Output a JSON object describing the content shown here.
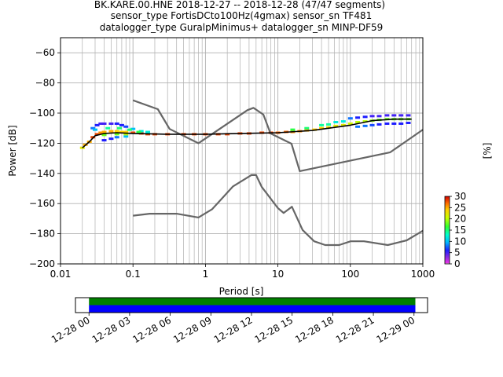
{
  "title_lines": [
    "BK.KARE.00.HNE   2018-12-27 -- 2018-12-28  (47/47 segments)",
    "sensor_type FortisDCto100Hz(4gmax) sensor_sn TF481",
    "datalogger_type GuralpMinimus+ datalogger_sn MINP-DF59"
  ],
  "chart_data": [
    {
      "type": "heatmap",
      "xlabel": "Period [s]",
      "ylabel": "Power [dB]",
      "xscale": "log",
      "xlim": [
        0.01,
        1000
      ],
      "ylim": [
        -200,
        -50
      ],
      "grid": true,
      "x_ticks": [
        {
          "value": 0.01,
          "label": "0.01"
        },
        {
          "value": 0.1,
          "label": "0.1"
        },
        {
          "value": 1,
          "label": "1"
        },
        {
          "value": 10,
          "label": "10"
        },
        {
          "value": 100,
          "label": "100"
        },
        {
          "value": 1000,
          "label": "1000"
        }
      ],
      "y_ticks": [
        {
          "value": -60,
          "label": "−60"
        },
        {
          "value": -80,
          "label": "−80"
        },
        {
          "value": -100,
          "label": "−100"
        },
        {
          "value": -120,
          "label": "−120"
        },
        {
          "value": -140,
          "label": "−140"
        },
        {
          "value": -160,
          "label": "−160"
        },
        {
          "value": -180,
          "label": "−180"
        },
        {
          "value": -200,
          "label": "−200"
        }
      ],
      "colorbar": {
        "label": "[%]",
        "range": [
          0,
          30
        ],
        "ticks": [
          "0",
          "5",
          "10",
          "15",
          "20",
          "25",
          "30"
        ]
      },
      "series": [
        {
          "role": "new-high-noise-model",
          "color": "#666666",
          "points": [
            [
              0.1,
              -91.5
            ],
            [
              0.22,
              -97.4
            ],
            [
              0.32,
              -110.5
            ],
            [
              0.8,
              -120
            ],
            [
              3.8,
              -98
            ],
            [
              4.6,
              -96.5
            ],
            [
              6.3,
              -101
            ],
            [
              7.9,
              -113.5
            ],
            [
              15.4,
              -120.3
            ],
            [
              20,
              -138.5
            ],
            [
              354.8,
              -126
            ],
            [
              1000,
              -111
            ]
          ]
        },
        {
          "role": "new-low-noise-model",
          "color": "#666666",
          "points": [
            [
              0.1,
              -168
            ],
            [
              0.17,
              -166.7
            ],
            [
              0.4,
              -166.7
            ],
            [
              0.8,
              -169.2
            ],
            [
              1.24,
              -163.7
            ],
            [
              2.4,
              -148.6
            ],
            [
              4.3,
              -141.1
            ],
            [
              5,
              -141.1
            ],
            [
              6,
              -149
            ],
            [
              10,
              -163
            ],
            [
              12,
              -166.2
            ],
            [
              15.6,
              -162.1
            ],
            [
              21.9,
              -177.5
            ],
            [
              31.6,
              -185
            ],
            [
              45,
              -187.5
            ],
            [
              70,
              -187.5
            ],
            [
              101,
              -185
            ],
            [
              154,
              -185
            ],
            [
              328,
              -187.5
            ],
            [
              600,
              -184.4
            ],
            [
              1000,
              -178
            ]
          ]
        },
        {
          "role": "mode",
          "color": "#000000",
          "points": [
            [
              0.02,
              -123
            ],
            [
              0.025,
              -119
            ],
            [
              0.03,
              -115
            ],
            [
              0.04,
              -113.5
            ],
            [
              0.06,
              -113
            ],
            [
              0.1,
              -113.5
            ],
            [
              0.3,
              -114
            ],
            [
              1,
              -114
            ],
            [
              3,
              -113.5
            ],
            [
              10,
              -113
            ],
            [
              30,
              -111.5
            ],
            [
              100,
              -108
            ],
            [
              200,
              -105
            ],
            [
              400,
              -104
            ],
            [
              700,
              -104
            ]
          ]
        },
        {
          "role": "ppsd-density",
          "points": [
            [
              0.02,
              -123,
              22
            ],
            [
              0.022,
              -121,
              25
            ],
            [
              0.025,
              -119,
              25
            ],
            [
              0.028,
              -116,
              28
            ],
            [
              0.032,
              -114,
              28
            ],
            [
              0.036,
              -113,
              26
            ],
            [
              0.04,
              -112.5,
              25
            ],
            [
              0.05,
              -112,
              25
            ],
            [
              0.06,
              -112,
              24
            ],
            [
              0.07,
              -112.5,
              24
            ],
            [
              0.08,
              -112.5,
              24
            ],
            [
              0.1,
              -113,
              28
            ],
            [
              0.13,
              -113.5,
              28
            ],
            [
              0.16,
              -114,
              28
            ],
            [
              0.2,
              -114,
              28
            ],
            [
              0.3,
              -114,
              28
            ],
            [
              0.5,
              -114,
              28
            ],
            [
              0.7,
              -114,
              28
            ],
            [
              1,
              -114,
              28
            ],
            [
              1.5,
              -114,
              28
            ],
            [
              2,
              -114,
              28
            ],
            [
              3,
              -113.5,
              28
            ],
            [
              4,
              -113.5,
              28
            ],
            [
              6,
              -113,
              28
            ],
            [
              8,
              -113,
              28
            ],
            [
              10,
              -113,
              27
            ],
            [
              13,
              -112.5,
              27
            ],
            [
              16,
              -112.5,
              26
            ],
            [
              20,
              -112,
              26
            ],
            [
              25,
              -111.5,
              25
            ],
            [
              32,
              -111,
              24
            ],
            [
              40,
              -110,
              24
            ],
            [
              50,
              -109.5,
              23
            ],
            [
              63,
              -108.5,
              22
            ],
            [
              80,
              -108,
              22
            ],
            [
              100,
              -107,
              21
            ],
            [
              126,
              -106,
              20
            ],
            [
              160,
              -105.5,
              20
            ],
            [
              200,
              -105,
              19
            ],
            [
              250,
              -104.5,
              18
            ],
            [
              320,
              -104,
              18
            ],
            [
              400,
              -104,
              18
            ],
            [
              500,
              -104,
              18
            ],
            [
              630,
              -104,
              18
            ],
            [
              0.028,
              -110,
              8
            ],
            [
              0.032,
              -108,
              6
            ],
            [
              0.036,
              -107,
              5
            ],
            [
              0.04,
              -107,
              5
            ],
            [
              0.05,
              -107,
              5
            ],
            [
              0.06,
              -107,
              6
            ],
            [
              0.07,
              -108,
              6
            ],
            [
              0.08,
              -109,
              7
            ],
            [
              0.1,
              -110.5,
              10
            ],
            [
              0.13,
              -112,
              12
            ],
            [
              0.16,
              -112.5,
              12
            ],
            [
              0.04,
              -118,
              6
            ],
            [
              0.05,
              -117,
              6
            ],
            [
              0.06,
              -116,
              8
            ],
            [
              0.08,
              -115.5,
              10
            ],
            [
              0.03,
              -111,
              10
            ],
            [
              0.045,
              -110,
              14
            ],
            [
              0.065,
              -110,
              15
            ],
            [
              0.09,
              -111,
              15
            ],
            [
              0.12,
              -112.5,
              16
            ],
            [
              0.04,
              -114.5,
              18
            ],
            [
              0.06,
              -114,
              18
            ],
            [
              0.08,
              -114,
              20
            ],
            [
              100,
              -103.5,
              8
            ],
            [
              126,
              -103,
              6
            ],
            [
              160,
              -102.5,
              6
            ],
            [
              200,
              -102,
              5
            ],
            [
              250,
              -102,
              5
            ],
            [
              320,
              -101.5,
              5
            ],
            [
              400,
              -101.5,
              5
            ],
            [
              500,
              -101.5,
              5
            ],
            [
              630,
              -101.5,
              5
            ],
            [
              126,
              -109,
              8
            ],
            [
              160,
              -108.5,
              8
            ],
            [
              200,
              -108,
              7
            ],
            [
              250,
              -107.5,
              6
            ],
            [
              320,
              -107,
              6
            ],
            [
              400,
              -107,
              6
            ],
            [
              500,
              -107,
              6
            ],
            [
              630,
              -106.5,
              6
            ],
            [
              63,
              -106,
              12
            ],
            [
              80,
              -105.5,
              12
            ],
            [
              40,
              -108,
              14
            ],
            [
              50,
              -107.5,
              14
            ],
            [
              16,
              -111,
              16
            ],
            [
              25,
              -110,
              15
            ]
          ]
        }
      ]
    },
    {
      "type": "timeline",
      "x_ticks": [
        "12-28 00",
        "12-28 03",
        "12-28 06",
        "12-28 09",
        "12-28 12",
        "12-28 15",
        "12-28 18",
        "12-28 21",
        "12-29 00"
      ],
      "xlim_hours": [
        -1,
        25
      ],
      "bars": [
        {
          "role": "data-availability",
          "color": "#008000",
          "start_hour": 0,
          "end_hour": 24.1
        },
        {
          "role": "processed-segments",
          "color": "#0000ff",
          "start_hour": 0,
          "end_hour": 24.1
        }
      ]
    }
  ]
}
